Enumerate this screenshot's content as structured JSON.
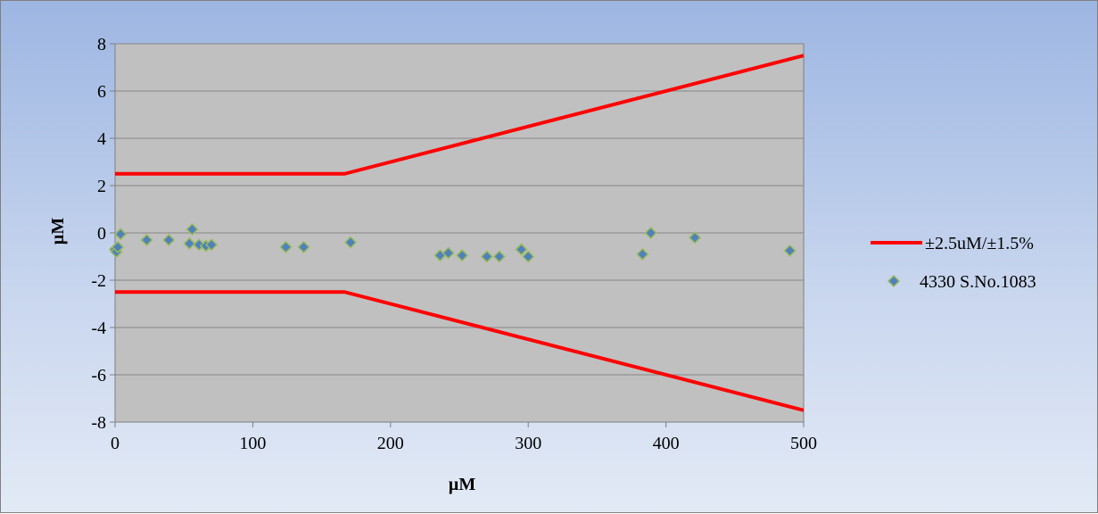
{
  "chart_data": {
    "type": "scatter",
    "title": "",
    "xlabel": "µM",
    "ylabel": "µM",
    "xlim": [
      0,
      500
    ],
    "ylim": [
      -8,
      8
    ],
    "x_ticks": [
      0,
      100,
      200,
      300,
      400,
      500
    ],
    "y_ticks": [
      8,
      6,
      4,
      2,
      0,
      -2,
      -4,
      -6,
      -8
    ],
    "grid": "horizontal",
    "legend_position": "right",
    "colors": {
      "plot_area": "#c0c0c0",
      "limit_line": "#ff0000",
      "marker_fill": "#4f81bd",
      "marker_edge": "#9bbb59",
      "gridline": "#868686"
    },
    "series": [
      {
        "name": "±2.5uM/±1.5%",
        "kind": "line",
        "segments": [
          [
            [
              0,
              2.5
            ],
            [
              166.7,
              2.5
            ],
            [
              500,
              7.5
            ]
          ],
          [
            [
              0,
              -2.5
            ],
            [
              166.7,
              -2.5
            ],
            [
              500,
              -7.5
            ]
          ]
        ]
      },
      {
        "name": "4330 S.No.1083",
        "kind": "scatter",
        "marker": "diamond",
        "points": [
          [
            0,
            -0.7
          ],
          [
            1,
            -0.8
          ],
          [
            2,
            -0.6
          ],
          [
            4,
            -0.05
          ],
          [
            23,
            -0.3
          ],
          [
            39,
            -0.3
          ],
          [
            54,
            -0.45
          ],
          [
            56,
            0.15
          ],
          [
            61,
            -0.5
          ],
          [
            66,
            -0.55
          ],
          [
            70,
            -0.5
          ],
          [
            124,
            -0.6
          ],
          [
            137,
            -0.6
          ],
          [
            171,
            -0.4
          ],
          [
            236,
            -0.95
          ],
          [
            242,
            -0.85
          ],
          [
            252,
            -0.95
          ],
          [
            270,
            -1.0
          ],
          [
            279,
            -1.0
          ],
          [
            295,
            -0.7
          ],
          [
            300,
            -1.0
          ],
          [
            383,
            -0.9
          ],
          [
            389,
            0.0
          ],
          [
            421,
            -0.2
          ],
          [
            490,
            -0.75
          ]
        ]
      }
    ]
  }
}
